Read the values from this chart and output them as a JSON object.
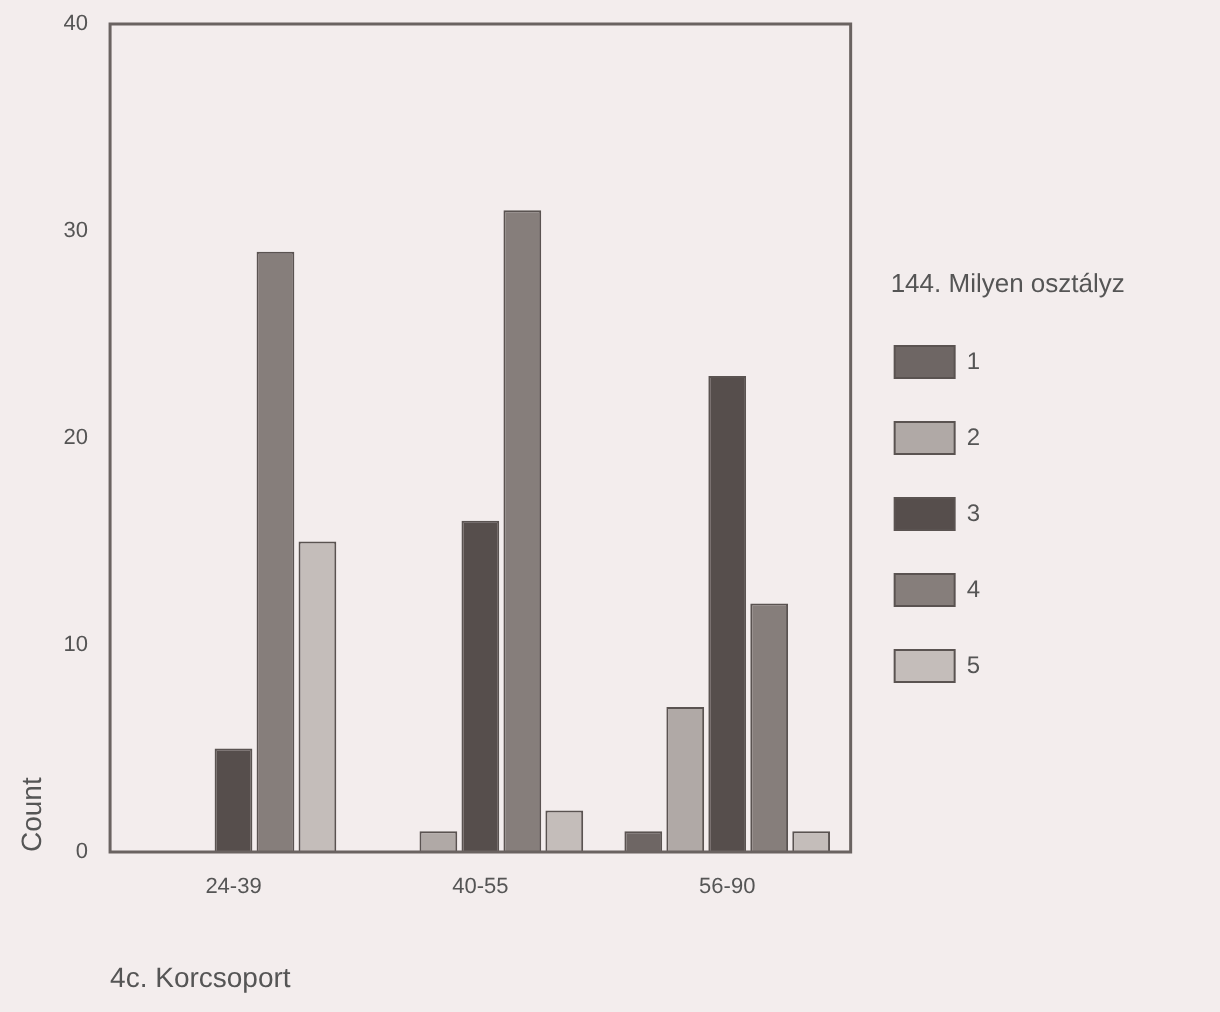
{
  "chart_data": {
    "type": "bar",
    "xlabel": "4c. Korcsoport",
    "ylabel": "Count",
    "legend_title": "144. Milyen osztályz",
    "categories": [
      "24-39",
      "40-55",
      "56-90"
    ],
    "series": [
      {
        "name": "1",
        "color": "#6e6664",
        "values": [
          0,
          0,
          1
        ]
      },
      {
        "name": "2",
        "color": "#b0a9a6",
        "values": [
          0,
          1,
          7
        ]
      },
      {
        "name": "3",
        "color": "#564e4c",
        "values": [
          5,
          16,
          23
        ]
      },
      {
        "name": "4",
        "color": "#867e7b",
        "values": [
          29,
          31,
          12
        ]
      },
      {
        "name": "5",
        "color": "#c4bdba",
        "values": [
          15,
          2,
          1
        ]
      }
    ],
    "ylim": [
      0,
      40
    ],
    "yticks": [
      0,
      10,
      20,
      30,
      40
    ],
    "grid": false,
    "legend": "right"
  }
}
